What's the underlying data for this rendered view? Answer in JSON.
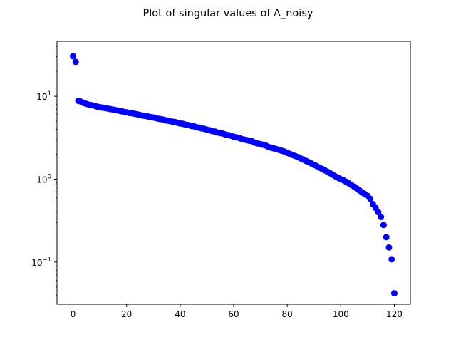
{
  "chart_data": {
    "type": "scatter",
    "title": "Plot of singular values of A_noisy",
    "xlabel": "",
    "ylabel": "",
    "xlim": [
      -6,
      126
    ],
    "ylim": [
      0.031,
      46
    ],
    "yscale": "log",
    "grid": false,
    "marker_color": "#0000ff",
    "x_ticks": [
      {
        "value": 0,
        "label": "0"
      },
      {
        "value": 20,
        "label": "20"
      },
      {
        "value": 40,
        "label": "40"
      },
      {
        "value": 60,
        "label": "60"
      },
      {
        "value": 80,
        "label": "80"
      },
      {
        "value": 100,
        "label": "100"
      },
      {
        "value": 120,
        "label": "120"
      }
    ],
    "y_ticks": [
      {
        "value": 0.1,
        "base": "10",
        "exponent": "−1"
      },
      {
        "value": 1,
        "base": "10",
        "exponent": "0"
      },
      {
        "value": 10,
        "base": "10",
        "exponent": "1"
      }
    ],
    "series": [
      {
        "x": [
          0,
          1,
          2,
          3,
          4,
          5,
          6,
          7,
          8,
          9,
          10,
          11,
          12,
          13,
          14,
          15,
          16,
          17,
          18,
          19,
          20,
          21,
          22,
          23,
          24,
          25,
          26,
          27,
          28,
          29,
          30,
          31,
          32,
          33,
          34,
          35,
          36,
          37,
          38,
          39,
          40,
          41,
          42,
          43,
          44,
          45,
          46,
          47,
          48,
          49,
          50,
          51,
          52,
          53,
          54,
          55,
          56,
          57,
          58,
          59,
          60,
          61,
          62,
          63,
          64,
          65,
          66,
          67,
          68,
          69,
          70,
          71,
          72,
          73,
          74,
          75,
          76,
          77,
          78,
          79,
          80,
          81,
          82,
          83,
          84,
          85,
          86,
          87,
          88,
          89,
          90,
          91,
          92,
          93,
          94,
          95,
          96,
          97,
          98,
          99,
          100,
          101,
          102,
          103,
          104,
          105,
          106,
          107,
          108,
          109,
          110,
          111,
          112,
          113,
          114,
          115,
          116,
          117,
          118,
          119,
          120
        ],
        "y": [
          30.5,
          26,
          8.8,
          8.6,
          8.3,
          8.1,
          7.9,
          7.8,
          7.7,
          7.5,
          7.4,
          7.3,
          7.2,
          7.1,
          7.0,
          6.9,
          6.8,
          6.7,
          6.6,
          6.5,
          6.4,
          6.3,
          6.25,
          6.15,
          6.05,
          5.95,
          5.85,
          5.8,
          5.7,
          5.6,
          5.55,
          5.45,
          5.35,
          5.3,
          5.2,
          5.1,
          5.05,
          4.95,
          4.9,
          4.8,
          4.7,
          4.65,
          4.55,
          4.5,
          4.4,
          4.35,
          4.25,
          4.2,
          4.1,
          4.05,
          3.95,
          3.9,
          3.8,
          3.75,
          3.65,
          3.6,
          3.55,
          3.45,
          3.4,
          3.35,
          3.25,
          3.2,
          3.15,
          3.05,
          3.0,
          2.95,
          2.9,
          2.85,
          2.75,
          2.7,
          2.65,
          2.6,
          2.55,
          2.45,
          2.4,
          2.35,
          2.3,
          2.25,
          2.2,
          2.15,
          2.08,
          2.02,
          1.96,
          1.9,
          1.85,
          1.78,
          1.72,
          1.66,
          1.6,
          1.55,
          1.49,
          1.44,
          1.38,
          1.33,
          1.28,
          1.23,
          1.18,
          1.13,
          1.08,
          1.04,
          1.0,
          0.97,
          0.93,
          0.89,
          0.85,
          0.81,
          0.77,
          0.73,
          0.69,
          0.66,
          0.63,
          0.58,
          0.5,
          0.45,
          0.4,
          0.35,
          0.28,
          0.2,
          0.15,
          0.108,
          0.042
        ]
      }
    ]
  }
}
